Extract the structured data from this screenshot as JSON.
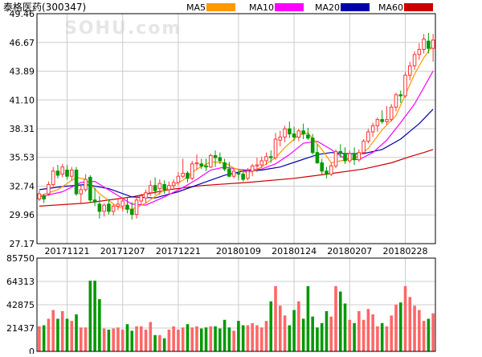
{
  "chart_data": {
    "type": "candlestick",
    "title": "泰格医药(300347)",
    "watermark": "SOHU.com",
    "legend": [
      {
        "label": "MA5",
        "color": "#ff9900"
      },
      {
        "label": "MA10",
        "color": "#ff00ff"
      },
      {
        "label": "MA20",
        "color": "#0000aa"
      },
      {
        "label": "MA60",
        "color": "#cc0000"
      }
    ],
    "price_ticks": [
      "49.46",
      "46.67",
      "43.89",
      "41.10",
      "38.31",
      "35.53",
      "32.74",
      "29.96",
      "27.17"
    ],
    "price_ylim": [
      27.17,
      49.46
    ],
    "volume_ticks": [
      "85750",
      "64313",
      "42875",
      "21437",
      "0"
    ],
    "volume_ylim": [
      0,
      85750
    ],
    "date_labels": [
      "20171121",
      "20171207",
      "20171221",
      "20180109",
      "20180124",
      "20180207",
      "20180228"
    ],
    "date_label_index": [
      6,
      18,
      30,
      43,
      55,
      67,
      79
    ],
    "colors": {
      "up": "#ff3333",
      "down": "#009900",
      "grid": "#cccccc",
      "axis": "#000000"
    },
    "candles": [
      [
        31.5,
        32.3,
        31.3,
        32.0,
        23000
      ],
      [
        31.8,
        32.0,
        31.1,
        31.5,
        24000
      ],
      [
        32.0,
        33.2,
        31.8,
        32.9,
        30000
      ],
      [
        32.9,
        34.6,
        32.7,
        34.2,
        38000
      ],
      [
        34.2,
        34.8,
        33.5,
        33.8,
        30000
      ],
      [
        33.9,
        34.9,
        33.6,
        34.6,
        37000
      ],
      [
        34.3,
        34.8,
        33.4,
        33.7,
        30000
      ],
      [
        33.7,
        34.6,
        33.3,
        34.3,
        28000
      ],
      [
        34.3,
        34.6,
        31.8,
        32.0,
        34000
      ],
      [
        32.0,
        32.8,
        31.0,
        32.4,
        22000
      ],
      [
        32.4,
        33.9,
        32.2,
        33.4,
        22000
      ],
      [
        33.6,
        33.8,
        31.1,
        31.4,
        65000
      ],
      [
        31.4,
        32.6,
        30.8,
        31.2,
        65000
      ],
      [
        31.0,
        31.8,
        29.6,
        30.3,
        48000
      ],
      [
        30.3,
        31.1,
        29.8,
        30.9,
        21000
      ],
      [
        31.0,
        31.5,
        30.0,
        30.3,
        20000
      ],
      [
        30.3,
        31.0,
        29.9,
        30.8,
        21000
      ],
      [
        30.8,
        31.6,
        30.4,
        31.0,
        22000
      ],
      [
        30.8,
        31.6,
        30.3,
        31.3,
        20000
      ],
      [
        30.9,
        31.6,
        30.1,
        30.5,
        25000
      ],
      [
        30.5,
        31.2,
        29.5,
        30.0,
        19000
      ],
      [
        30.0,
        31.8,
        29.6,
        31.4,
        23000
      ],
      [
        31.3,
        32.0,
        30.9,
        31.8,
        23000
      ],
      [
        31.6,
        32.4,
        31.1,
        32.1,
        20000
      ],
      [
        32.1,
        33.3,
        31.8,
        32.8,
        27000
      ],
      [
        32.8,
        33.6,
        31.9,
        32.3,
        15000
      ],
      [
        32.5,
        33.4,
        31.9,
        33.0,
        15000
      ],
      [
        32.9,
        33.3,
        32.0,
        32.4,
        12000
      ],
      [
        32.4,
        33.2,
        32.0,
        32.8,
        20000
      ],
      [
        32.8,
        33.4,
        32.4,
        33.1,
        23000
      ],
      [
        33.1,
        34.1,
        32.8,
        33.7,
        20000
      ],
      [
        33.7,
        35.4,
        33.5,
        34.0,
        22000
      ],
      [
        34.0,
        34.2,
        33.1,
        33.5,
        25000
      ],
      [
        33.5,
        35.2,
        33.3,
        34.9,
        22000
      ],
      [
        34.9,
        35.8,
        34.3,
        35.0,
        23000
      ],
      [
        34.9,
        35.4,
        34.4,
        34.7,
        21000
      ],
      [
        34.7,
        35.4,
        34.2,
        34.6,
        22000
      ],
      [
        34.6,
        35.9,
        34.5,
        35.7,
        23000
      ],
      [
        35.7,
        36.2,
        34.6,
        35.5,
        23000
      ],
      [
        35.5,
        36.0,
        34.9,
        35.2,
        21000
      ],
      [
        35.0,
        35.4,
        34.2,
        34.4,
        29000
      ],
      [
        34.4,
        35.1,
        33.6,
        33.7,
        22000
      ],
      [
        33.7,
        34.5,
        33.5,
        34.2,
        19000
      ],
      [
        34.0,
        34.3,
        33.3,
        33.9,
        28000
      ],
      [
        33.9,
        34.4,
        33.2,
        33.4,
        24000
      ],
      [
        33.5,
        34.5,
        33.3,
        34.2,
        24000
      ],
      [
        34.2,
        34.9,
        33.7,
        34.7,
        26000
      ],
      [
        34.7,
        35.5,
        34.1,
        34.8,
        24000
      ],
      [
        34.8,
        35.6,
        34.5,
        35.2,
        22000
      ],
      [
        35.2,
        36.0,
        34.8,
        35.6,
        28000
      ],
      [
        35.6,
        36.2,
        35.0,
        35.5,
        46000
      ],
      [
        35.5,
        37.9,
        35.3,
        37.3,
        60000
      ],
      [
        37.2,
        38.1,
        36.6,
        37.5,
        42000
      ],
      [
        37.5,
        38.6,
        37.0,
        38.3,
        33000
      ],
      [
        38.3,
        39.0,
        37.4,
        37.8,
        24000
      ],
      [
        37.8,
        38.5,
        37.1,
        37.5,
        38000
      ],
      [
        37.5,
        38.3,
        37.1,
        38.1,
        46000
      ],
      [
        38.1,
        38.8,
        37.3,
        37.8,
        30000
      ],
      [
        37.7,
        38.4,
        37.2,
        37.4,
        60000
      ],
      [
        37.4,
        37.8,
        35.8,
        36.0,
        32000
      ],
      [
        36.0,
        36.8,
        34.9,
        35.0,
        22000
      ],
      [
        35.0,
        35.4,
        33.9,
        34.2,
        26000
      ],
      [
        34.2,
        34.6,
        33.5,
        33.9,
        37000
      ],
      [
        33.9,
        35.0,
        33.7,
        34.7,
        32000
      ],
      [
        34.7,
        36.3,
        34.5,
        36.1,
        60000
      ],
      [
        36.1,
        36.8,
        35.5,
        35.9,
        55000
      ],
      [
        35.9,
        36.5,
        34.9,
        35.2,
        44000
      ],
      [
        35.2,
        36.2,
        35.0,
        35.9,
        29000
      ],
      [
        35.9,
        36.5,
        34.8,
        35.3,
        26000
      ],
      [
        35.3,
        36.3,
        35.1,
        36.0,
        37000
      ],
      [
        36.0,
        37.3,
        35.8,
        37.1,
        29000
      ],
      [
        37.1,
        38.3,
        36.9,
        38.0,
        39000
      ],
      [
        38.0,
        38.9,
        37.5,
        38.6,
        34000
      ],
      [
        38.6,
        39.4,
        38.0,
        39.2,
        23000
      ],
      [
        39.2,
        40.1,
        38.8,
        39.0,
        26000
      ],
      [
        39.0,
        40.5,
        38.7,
        39.2,
        23000
      ],
      [
        39.2,
        40.7,
        39.0,
        40.4,
        33000
      ],
      [
        40.4,
        41.8,
        40.0,
        41.6,
        43000
      ],
      [
        41.6,
        42.0,
        40.8,
        41.5,
        45000
      ],
      [
        41.5,
        43.8,
        41.3,
        43.5,
        60000
      ],
      [
        43.5,
        44.8,
        43.0,
        44.4,
        50000
      ],
      [
        44.4,
        45.8,
        44.0,
        45.5,
        42000
      ],
      [
        45.5,
        46.6,
        45.0,
        46.0,
        38000
      ],
      [
        46.0,
        47.5,
        45.6,
        47.0,
        28000
      ],
      [
        46.8,
        47.6,
        45.6,
        46.1,
        30000
      ],
      [
        46.1,
        47.5,
        44.8,
        46.9,
        35000
      ]
    ],
    "ma5": [
      [
        0,
        31.8
      ],
      [
        4,
        32.4
      ],
      [
        8,
        33.6
      ],
      [
        10,
        33.4
      ],
      [
        13,
        32.0
      ],
      [
        17,
        30.7
      ],
      [
        20,
        30.5
      ],
      [
        23,
        31.1
      ],
      [
        27,
        32.4
      ],
      [
        31,
        33.3
      ],
      [
        34,
        34.4
      ],
      [
        37,
        35.1
      ],
      [
        40,
        35.0
      ],
      [
        42,
        34.5
      ],
      [
        45,
        34.0
      ],
      [
        48,
        34.6
      ],
      [
        51,
        35.5
      ],
      [
        53,
        36.5
      ],
      [
        56,
        37.7
      ],
      [
        58,
        37.9
      ],
      [
        61,
        36.3
      ],
      [
        63,
        35.0
      ],
      [
        65,
        35.2
      ],
      [
        68,
        35.4
      ],
      [
        71,
        36.4
      ],
      [
        74,
        38.2
      ],
      [
        77,
        39.6
      ],
      [
        79,
        41.6
      ],
      [
        81,
        43.6
      ],
      [
        83,
        45.2
      ],
      [
        85,
        46.4
      ]
    ],
    "ma10": [
      [
        0,
        31.7
      ],
      [
        5,
        32.2
      ],
      [
        9,
        33.1
      ],
      [
        12,
        33.2
      ],
      [
        16,
        32.1
      ],
      [
        20,
        31.0
      ],
      [
        23,
        30.9
      ],
      [
        27,
        31.7
      ],
      [
        31,
        32.6
      ],
      [
        34,
        33.4
      ],
      [
        37,
        34.3
      ],
      [
        40,
        34.6
      ],
      [
        44,
        34.3
      ],
      [
        48,
        34.4
      ],
      [
        51,
        34.9
      ],
      [
        54,
        35.8
      ],
      [
        57,
        36.9
      ],
      [
        60,
        37.1
      ],
      [
        63,
        36.3
      ],
      [
        66,
        35.4
      ],
      [
        69,
        35.3
      ],
      [
        72,
        36.0
      ],
      [
        75,
        37.2
      ],
      [
        78,
        38.9
      ],
      [
        81,
        40.7
      ],
      [
        83,
        42.3
      ],
      [
        85,
        43.9
      ]
    ],
    "ma20": [
      [
        0,
        32.4
      ],
      [
        5,
        32.7
      ],
      [
        10,
        32.9
      ],
      [
        15,
        32.5
      ],
      [
        20,
        31.7
      ],
      [
        25,
        31.6
      ],
      [
        30,
        32.2
      ],
      [
        35,
        33.0
      ],
      [
        40,
        33.8
      ],
      [
        44,
        34.2
      ],
      [
        48,
        34.3
      ],
      [
        52,
        34.6
      ],
      [
        56,
        35.2
      ],
      [
        60,
        35.8
      ],
      [
        63,
        36.0
      ],
      [
        66,
        35.9
      ],
      [
        70,
        35.9
      ],
      [
        74,
        36.3
      ],
      [
        78,
        37.3
      ],
      [
        82,
        38.8
      ],
      [
        85,
        40.2
      ]
    ],
    "ma60": [
      [
        0,
        30.8
      ],
      [
        10,
        31.1
      ],
      [
        20,
        31.7
      ],
      [
        28,
        32.4
      ],
      [
        35,
        32.8
      ],
      [
        45,
        33.1
      ],
      [
        55,
        33.5
      ],
      [
        62,
        33.9
      ],
      [
        70,
        34.4
      ],
      [
        76,
        35.0
      ],
      [
        80,
        35.6
      ],
      [
        83,
        36.0
      ],
      [
        85,
        36.3
      ]
    ]
  }
}
